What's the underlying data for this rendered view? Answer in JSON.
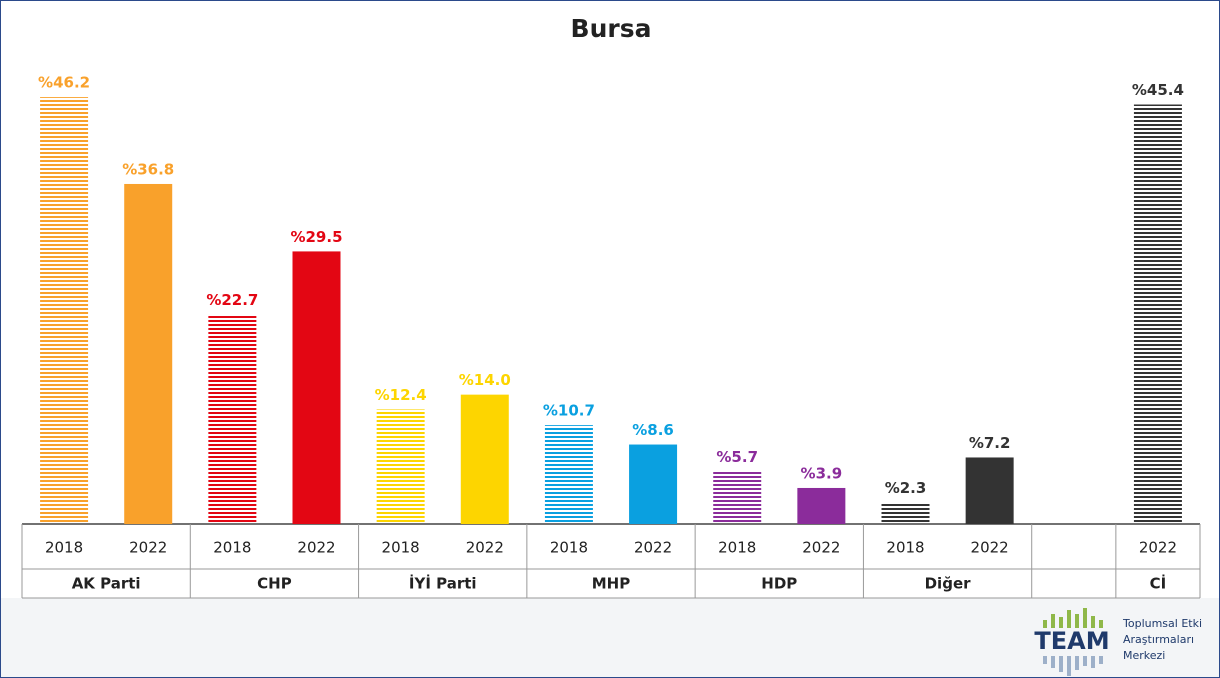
{
  "chart_data": {
    "type": "bar",
    "title": "Bursa",
    "categories": [
      "AK Parti",
      "CHP",
      "İYİ Parti",
      "MHP",
      "HDP",
      "Diğer",
      null,
      "Cİ"
    ],
    "colors": [
      "#f9a12b",
      "#e30613",
      "#fdd500",
      "#0aa0e0",
      "#8b2c9b",
      "#333333",
      null,
      "#333333"
    ],
    "series": [
      {
        "name": "2018",
        "hatched": [
          true,
          true,
          true,
          true,
          true,
          true,
          true,
          true
        ],
        "values": [
          46.2,
          22.7,
          12.4,
          10.7,
          5.7,
          2.3,
          null,
          null
        ],
        "value_labels": [
          "%46.2",
          "%22.7",
          "%12.4",
          "%10.7",
          "%5.7",
          "%2.3",
          null,
          null
        ]
      },
      {
        "name": "2022",
        "hatched": [
          false,
          false,
          false,
          false,
          false,
          false,
          false,
          true
        ],
        "values": [
          36.8,
          29.5,
          14.0,
          8.6,
          3.9,
          7.2,
          null,
          45.4
        ],
        "value_labels": [
          "%36.8",
          "%29.5",
          "%14.0",
          "%8.6",
          "%3.9",
          "%7.2",
          null,
          "%45.4"
        ]
      }
    ]
  },
  "logo": {
    "name": "TEAM",
    "lines": [
      "Toplumsal Etki",
      "Araştırmaları",
      "Merkezi"
    ]
  }
}
